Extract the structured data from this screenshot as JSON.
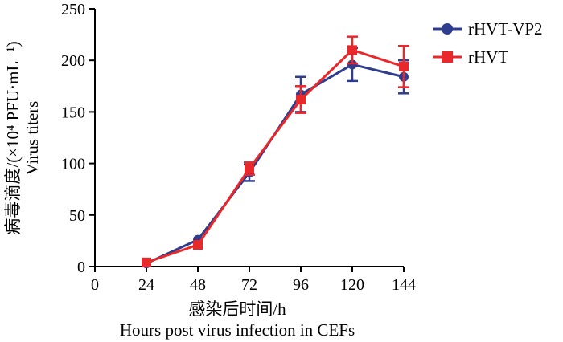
{
  "chart_data": {
    "type": "line",
    "x": [
      24,
      48,
      72,
      96,
      120,
      144
    ],
    "xlim": [
      0,
      144
    ],
    "ylim": [
      0,
      250
    ],
    "xticks": [
      "0",
      "24",
      "48",
      "72",
      "96",
      "120",
      "144"
    ],
    "yticks": [
      "0",
      "50",
      "100",
      "150",
      "200",
      "250"
    ],
    "xlabel_cn": "感染后时间/h",
    "xlabel_en": "Hours post virus infection in CEFs",
    "ylabel_cn": "病毒滴度/(×10⁴ PFU·mL⁻¹)",
    "ylabel_en": "Virus titers",
    "legend_position": "top-right",
    "series": [
      {
        "name": "rHVT-VP2",
        "color": "#2f3d8f",
        "marker": "circle",
        "values": [
          3,
          26,
          91,
          167,
          196,
          184
        ],
        "errors": [
          0,
          0,
          8,
          17,
          16,
          16
        ]
      },
      {
        "name": "rHVT",
        "color": "#e8282b",
        "marker": "square",
        "values": [
          4,
          21,
          95,
          162,
          210,
          194
        ],
        "errors": [
          0,
          0,
          6,
          13,
          13,
          20
        ]
      }
    ]
  }
}
